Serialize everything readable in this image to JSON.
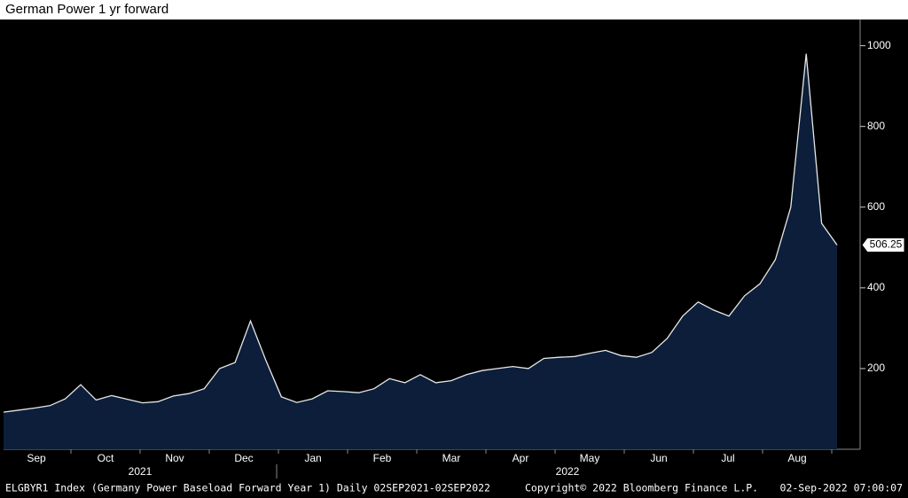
{
  "chart_data": {
    "type": "area",
    "title": "German Power 1 yr forward",
    "months": [
      "Sep",
      "Oct",
      "Nov",
      "Dec",
      "Jan",
      "Feb",
      "Mar",
      "Apr",
      "May",
      "Jun",
      "Jul",
      "Aug"
    ],
    "years": [
      "2021",
      "2022"
    ],
    "series": [
      {
        "name": "ELGBYR1 Index",
        "color": "#e8e8e8",
        "fill": "#0c1e3a",
        "values": [
          92,
          97,
          102,
          108,
          125,
          160,
          122,
          133,
          124,
          115,
          118,
          132,
          138,
          150,
          200,
          215,
          318,
          220,
          130,
          116,
          125,
          145,
          143,
          140,
          150,
          175,
          165,
          185,
          165,
          170,
          185,
          195,
          200,
          205,
          200,
          225,
          228,
          230,
          238,
          245,
          232,
          228,
          240,
          275,
          330,
          365,
          345,
          330,
          380,
          410,
          470,
          600,
          980,
          560,
          506.25
        ]
      }
    ],
    "ylim": [
      0,
      1065
    ],
    "yticks": [
      200,
      400,
      600,
      800,
      1000
    ],
    "footer": {
      "source": "ELGBYR1 Index (Germany Power Baseload Forward Year 1)  Daily 02SEP2021-02SEP2022",
      "copyright": "Copyright© 2022 Bloomberg Finance L.P.",
      "timestamp": "02-Sep-2022 07:00:07"
    }
  }
}
